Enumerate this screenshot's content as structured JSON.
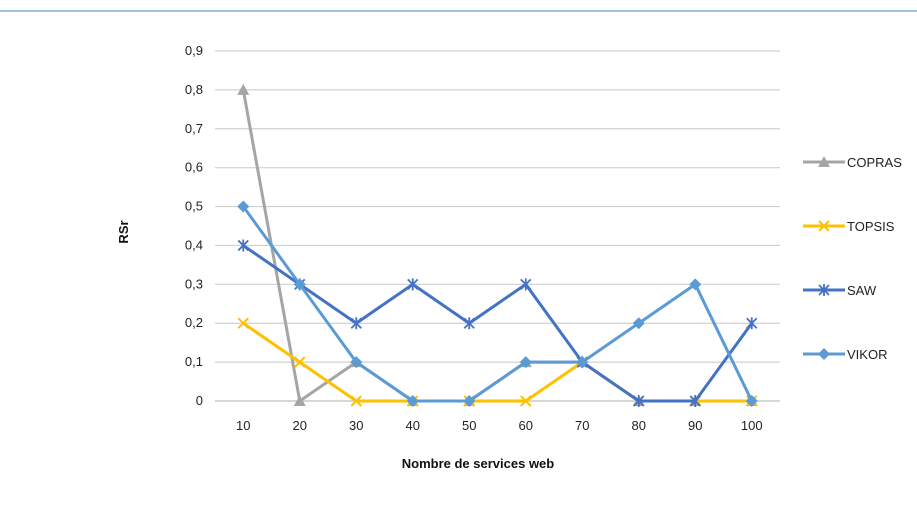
{
  "chart_data": {
    "type": "line",
    "title": "",
    "xlabel": "Nombre de services web",
    "ylabel": "RSr",
    "x": [
      10,
      20,
      30,
      40,
      50,
      60,
      70,
      80,
      90,
      100
    ],
    "x_tick_labels": [
      "10",
      "20",
      "30",
      "40",
      "50",
      "60",
      "70",
      "80",
      "90",
      "100"
    ],
    "ylim": [
      0,
      0.9
    ],
    "y_ticks": [
      0,
      0.1,
      0.2,
      0.3,
      0.4,
      0.5,
      0.6,
      0.7,
      0.8,
      0.9
    ],
    "y_tick_labels": [
      "0",
      "0,1",
      "0,2",
      "0,3",
      "0,4",
      "0,5",
      "0,6",
      "0,7",
      "0,8",
      "0,9"
    ],
    "grid": true,
    "legend_position": "right",
    "series": [
      {
        "name": "COPRAS",
        "color": "#a5a5a5",
        "marker": "triangle",
        "values": [
          0.8,
          0,
          0.1,
          0,
          0,
          0.1,
          0.1,
          0,
          0,
          0
        ]
      },
      {
        "name": "TOPSIS",
        "color": "#ffc000",
        "marker": "x",
        "values": [
          0.2,
          0.1,
          0,
          0,
          0,
          0,
          0.1,
          0,
          0,
          0
        ]
      },
      {
        "name": "SAW",
        "color": "#4472c4",
        "marker": "star",
        "values": [
          0.4,
          0.3,
          0.2,
          0.3,
          0.2,
          0.3,
          0.1,
          0,
          0,
          0.2
        ]
      },
      {
        "name": "VIKOR",
        "color": "#5b9bd5",
        "marker": "diamond",
        "values": [
          0.5,
          0.3,
          0.1,
          0,
          0,
          0.1,
          0.1,
          0.2,
          0.3,
          0
        ]
      }
    ]
  }
}
